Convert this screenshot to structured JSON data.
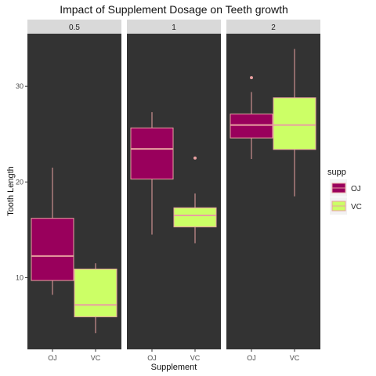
{
  "chart_data": {
    "type": "boxplot",
    "title": "Impact of Supplement Dosage on Teeth growth",
    "xlabel": "Supplement",
    "ylabel": "Tooth Length",
    "ylim": [
      2.5,
      35.5
    ],
    "yticks": [
      10,
      20,
      30
    ],
    "categories": [
      "OJ",
      "VC"
    ],
    "panels": [
      {
        "facet": "0.5",
        "boxes": [
          {
            "supp": "OJ",
            "whisker_low": 8.2,
            "q1": 9.7,
            "median": 12.25,
            "q3": 16.2,
            "whisker_high": 21.5,
            "outliers": []
          },
          {
            "supp": "VC",
            "whisker_low": 4.2,
            "q1": 5.9,
            "median": 7.15,
            "q3": 10.9,
            "whisker_high": 11.5,
            "outliers": []
          }
        ]
      },
      {
        "facet": "1",
        "boxes": [
          {
            "supp": "OJ",
            "whisker_low": 14.5,
            "q1": 20.3,
            "median": 23.45,
            "q3": 25.65,
            "whisker_high": 27.3,
            "outliers": []
          },
          {
            "supp": "VC",
            "whisker_low": 13.6,
            "q1": 15.3,
            "median": 16.5,
            "q3": 17.3,
            "whisker_high": 18.8,
            "outliers": [
              22.5
            ]
          }
        ]
      },
      {
        "facet": "2",
        "boxes": [
          {
            "supp": "OJ",
            "whisker_low": 22.4,
            "q1": 24.6,
            "median": 25.95,
            "q3": 27.1,
            "whisker_high": 29.4,
            "outliers": [
              30.9
            ]
          },
          {
            "supp": "VC",
            "whisker_low": 18.5,
            "q1": 23.4,
            "median": 25.95,
            "q3": 28.8,
            "whisker_high": 33.9,
            "outliers": []
          }
        ]
      }
    ],
    "legend": {
      "title": "supp",
      "placement": "right",
      "items": [
        {
          "label": "OJ",
          "color": "#99005c"
        },
        {
          "label": "VC",
          "color": "#ccff66"
        }
      ]
    },
    "colors": {
      "panel_background": "#333333",
      "strip_background": "#d9d9d9",
      "box_outline": "#e8a0a0",
      "median_line": "#e8a0a0"
    },
    "grid": false
  }
}
